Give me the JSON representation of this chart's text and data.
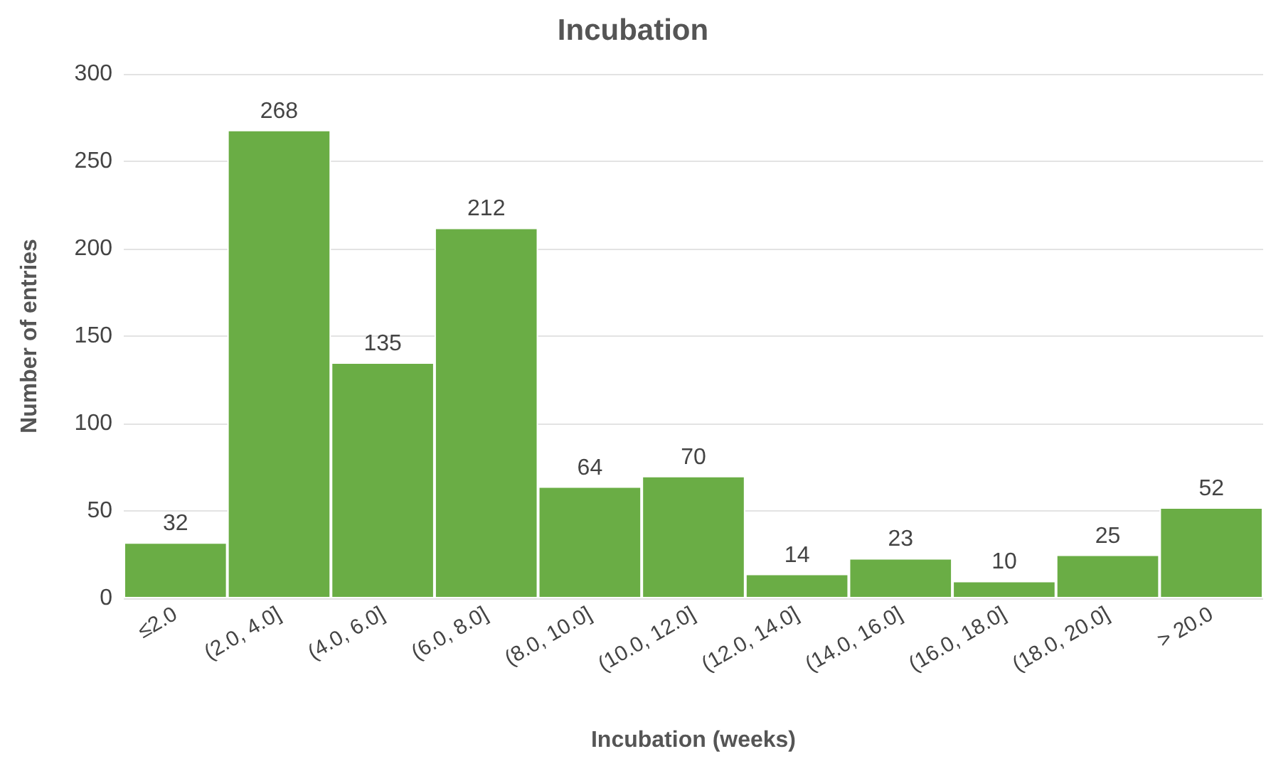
{
  "chart_data": {
    "type": "bar",
    "title": "Incubation",
    "xlabel": "Incubation (weeks)",
    "ylabel": "Number of entries",
    "categories": [
      "≤2.0",
      "(2.0, 4.0]",
      "(4.0, 6.0]",
      "(6.0, 8.0]",
      "(8.0, 10.0]",
      "(10.0, 12.0]",
      "(12.0, 14.0]",
      "(14.0, 16.0]",
      "(16.0, 18.0]",
      "(18.0, 20.0]",
      "> 20.0"
    ],
    "values": [
      32,
      268,
      135,
      212,
      64,
      70,
      14,
      23,
      10,
      25,
      52
    ],
    "color": "#6aad45",
    "ylim": [
      0,
      300
    ],
    "yticks": [
      0,
      50,
      100,
      150,
      200,
      250,
      300
    ],
    "grid": "y",
    "data_labels": true
  }
}
